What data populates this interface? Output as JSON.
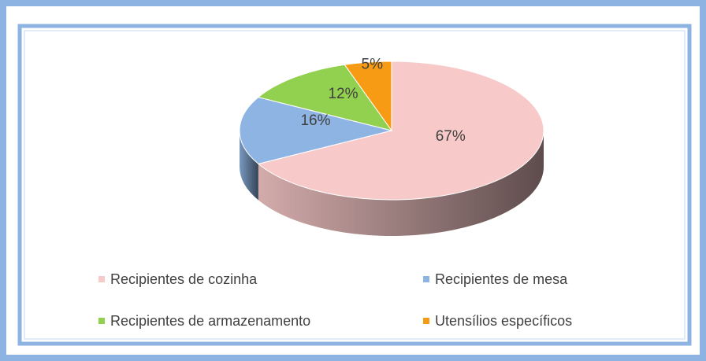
{
  "chart_data": {
    "type": "pie",
    "categories": [
      "Recipientes de cozinha",
      "Recipientes de mesa",
      "Recipientes de armazenamento",
      "Utensílios específicos"
    ],
    "values": [
      67,
      16,
      12,
      5
    ],
    "value_labels": [
      "67%",
      "16%",
      "12%",
      "5%"
    ],
    "colors": [
      "#f8c9c9",
      "#8eb4e3",
      "#92d050",
      "#f79a14"
    ],
    "legend": "bottom"
  }
}
